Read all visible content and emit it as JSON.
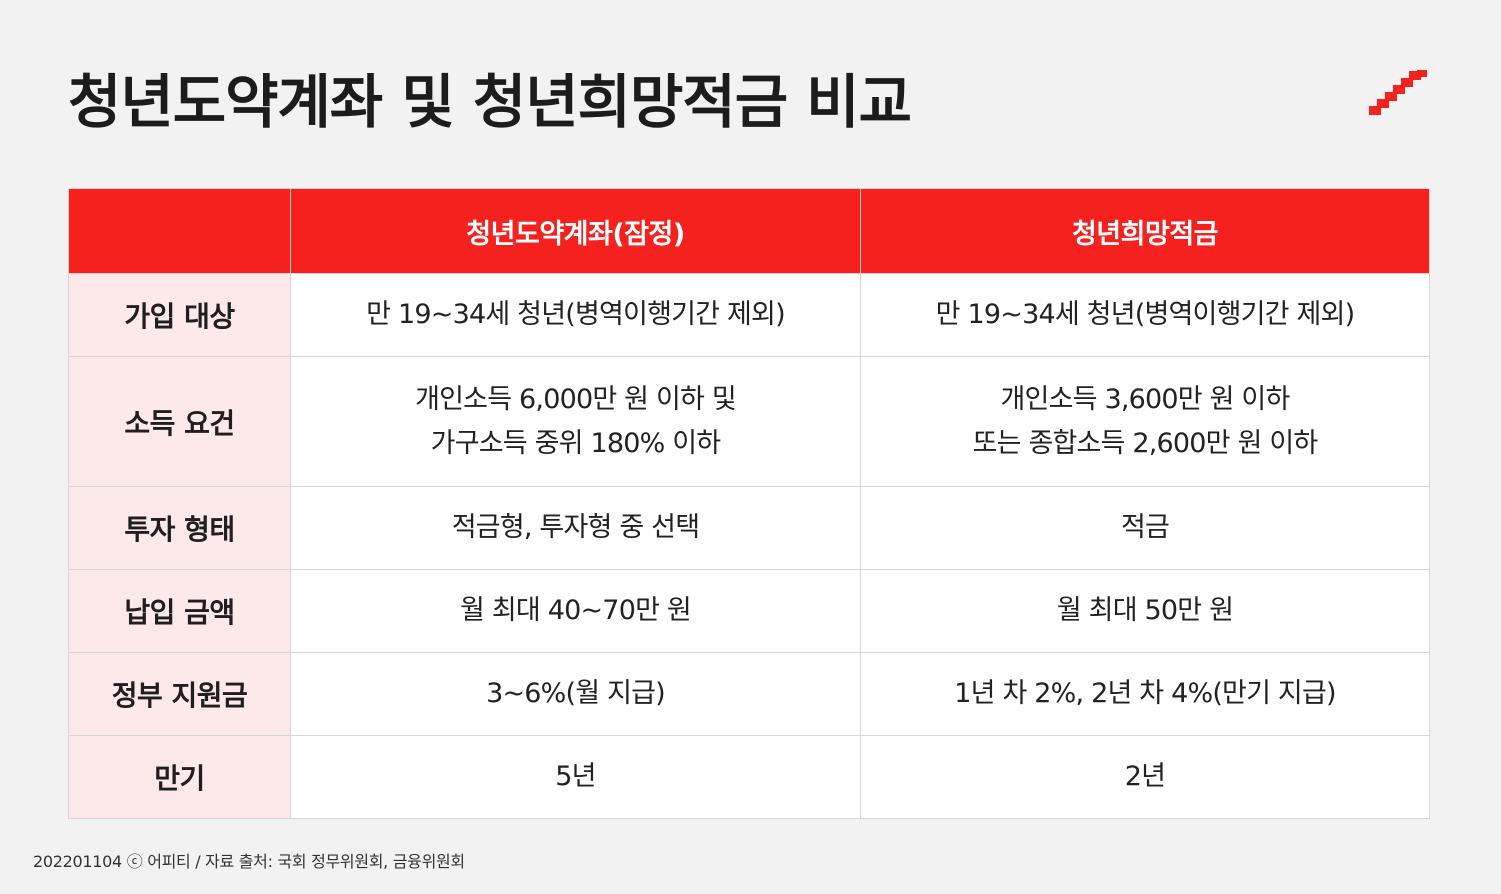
{
  "title": "청년도약계좌 및 청년희망적금 비교",
  "brand_color": "#f5211f",
  "logo_icon": "staircase-logo-icon",
  "table": {
    "header": [
      "",
      "청년도약계좌(잠정)",
      "청년희망적금"
    ],
    "rows": [
      {
        "label": "가입 대상",
        "col1": [
          "만 19~34세 청년(병역이행기간 제외)"
        ],
        "col2": [
          "만 19~34세 청년(병역이행기간 제외)"
        ]
      },
      {
        "label": "소득 요건",
        "col1": [
          "개인소득 6,000만 원 이하 및",
          "가구소득 중위 180% 이하"
        ],
        "col2": [
          "개인소득 3,600만 원 이하",
          "또는 종합소득 2,600만 원 이하"
        ]
      },
      {
        "label": "투자 형태",
        "col1": [
          "적금형, 투자형 중 선택"
        ],
        "col2": [
          "적금"
        ]
      },
      {
        "label": "납입 금액",
        "col1": [
          "월 최대 40~70만 원"
        ],
        "col2": [
          "월 최대 50만 원"
        ]
      },
      {
        "label": "정부 지원금",
        "col1": [
          "3~6%(월 지급)"
        ],
        "col2": [
          "1년 차 2%, 2년 차 4%(만기 지급)"
        ]
      },
      {
        "label": "만기",
        "col1": [
          "5년"
        ],
        "col2": [
          "2년"
        ]
      }
    ]
  },
  "footer": "202201104 ⓒ 어피티 / 자료 출처: 국회 정무위원회, 금융위원회"
}
